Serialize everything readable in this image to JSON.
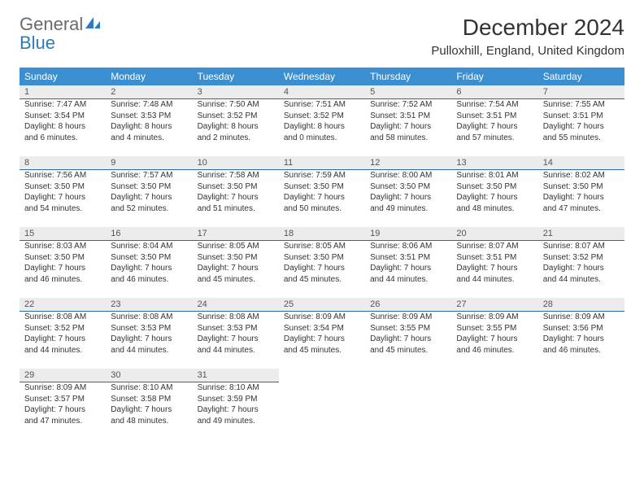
{
  "brand": {
    "line1": "General",
    "line2": "Blue"
  },
  "title": "December 2024",
  "location": "Pulloxhill, England, United Kingdom",
  "colors": {
    "header_bg": "#3b8fd1",
    "header_text": "#ffffff",
    "daynum_bg": "#ececec",
    "rule": "#2b6aa3",
    "body_text": "#333333",
    "logo_gray": "#6a6a6a",
    "logo_blue": "#2b7bbf"
  },
  "day_headers": [
    "Sunday",
    "Monday",
    "Tuesday",
    "Wednesday",
    "Thursday",
    "Friday",
    "Saturday"
  ],
  "weeks": [
    [
      {
        "n": "1",
        "sr": "7:47 AM",
        "ss": "3:54 PM",
        "dl": "8 hours and 6 minutes."
      },
      {
        "n": "2",
        "sr": "7:48 AM",
        "ss": "3:53 PM",
        "dl": "8 hours and 4 minutes."
      },
      {
        "n": "3",
        "sr": "7:50 AM",
        "ss": "3:52 PM",
        "dl": "8 hours and 2 minutes."
      },
      {
        "n": "4",
        "sr": "7:51 AM",
        "ss": "3:52 PM",
        "dl": "8 hours and 0 minutes."
      },
      {
        "n": "5",
        "sr": "7:52 AM",
        "ss": "3:51 PM",
        "dl": "7 hours and 58 minutes."
      },
      {
        "n": "6",
        "sr": "7:54 AM",
        "ss": "3:51 PM",
        "dl": "7 hours and 57 minutes."
      },
      {
        "n": "7",
        "sr": "7:55 AM",
        "ss": "3:51 PM",
        "dl": "7 hours and 55 minutes."
      }
    ],
    [
      {
        "n": "8",
        "sr": "7:56 AM",
        "ss": "3:50 PM",
        "dl": "7 hours and 54 minutes."
      },
      {
        "n": "9",
        "sr": "7:57 AM",
        "ss": "3:50 PM",
        "dl": "7 hours and 52 minutes."
      },
      {
        "n": "10",
        "sr": "7:58 AM",
        "ss": "3:50 PM",
        "dl": "7 hours and 51 minutes."
      },
      {
        "n": "11",
        "sr": "7:59 AM",
        "ss": "3:50 PM",
        "dl": "7 hours and 50 minutes."
      },
      {
        "n": "12",
        "sr": "8:00 AM",
        "ss": "3:50 PM",
        "dl": "7 hours and 49 minutes."
      },
      {
        "n": "13",
        "sr": "8:01 AM",
        "ss": "3:50 PM",
        "dl": "7 hours and 48 minutes."
      },
      {
        "n": "14",
        "sr": "8:02 AM",
        "ss": "3:50 PM",
        "dl": "7 hours and 47 minutes."
      }
    ],
    [
      {
        "n": "15",
        "sr": "8:03 AM",
        "ss": "3:50 PM",
        "dl": "7 hours and 46 minutes."
      },
      {
        "n": "16",
        "sr": "8:04 AM",
        "ss": "3:50 PM",
        "dl": "7 hours and 46 minutes."
      },
      {
        "n": "17",
        "sr": "8:05 AM",
        "ss": "3:50 PM",
        "dl": "7 hours and 45 minutes."
      },
      {
        "n": "18",
        "sr": "8:05 AM",
        "ss": "3:50 PM",
        "dl": "7 hours and 45 minutes."
      },
      {
        "n": "19",
        "sr": "8:06 AM",
        "ss": "3:51 PM",
        "dl": "7 hours and 44 minutes."
      },
      {
        "n": "20",
        "sr": "8:07 AM",
        "ss": "3:51 PM",
        "dl": "7 hours and 44 minutes."
      },
      {
        "n": "21",
        "sr": "8:07 AM",
        "ss": "3:52 PM",
        "dl": "7 hours and 44 minutes."
      }
    ],
    [
      {
        "n": "22",
        "sr": "8:08 AM",
        "ss": "3:52 PM",
        "dl": "7 hours and 44 minutes."
      },
      {
        "n": "23",
        "sr": "8:08 AM",
        "ss": "3:53 PM",
        "dl": "7 hours and 44 minutes."
      },
      {
        "n": "24",
        "sr": "8:08 AM",
        "ss": "3:53 PM",
        "dl": "7 hours and 44 minutes."
      },
      {
        "n": "25",
        "sr": "8:09 AM",
        "ss": "3:54 PM",
        "dl": "7 hours and 45 minutes."
      },
      {
        "n": "26",
        "sr": "8:09 AM",
        "ss": "3:55 PM",
        "dl": "7 hours and 45 minutes."
      },
      {
        "n": "27",
        "sr": "8:09 AM",
        "ss": "3:55 PM",
        "dl": "7 hours and 46 minutes."
      },
      {
        "n": "28",
        "sr": "8:09 AM",
        "ss": "3:56 PM",
        "dl": "7 hours and 46 minutes."
      }
    ],
    [
      {
        "n": "29",
        "sr": "8:09 AM",
        "ss": "3:57 PM",
        "dl": "7 hours and 47 minutes."
      },
      {
        "n": "30",
        "sr": "8:10 AM",
        "ss": "3:58 PM",
        "dl": "7 hours and 48 minutes."
      },
      {
        "n": "31",
        "sr": "8:10 AM",
        "ss": "3:59 PM",
        "dl": "7 hours and 49 minutes."
      },
      null,
      null,
      null,
      null
    ]
  ],
  "labels": {
    "sunrise": "Sunrise:",
    "sunset": "Sunset:",
    "daylight": "Daylight:"
  }
}
